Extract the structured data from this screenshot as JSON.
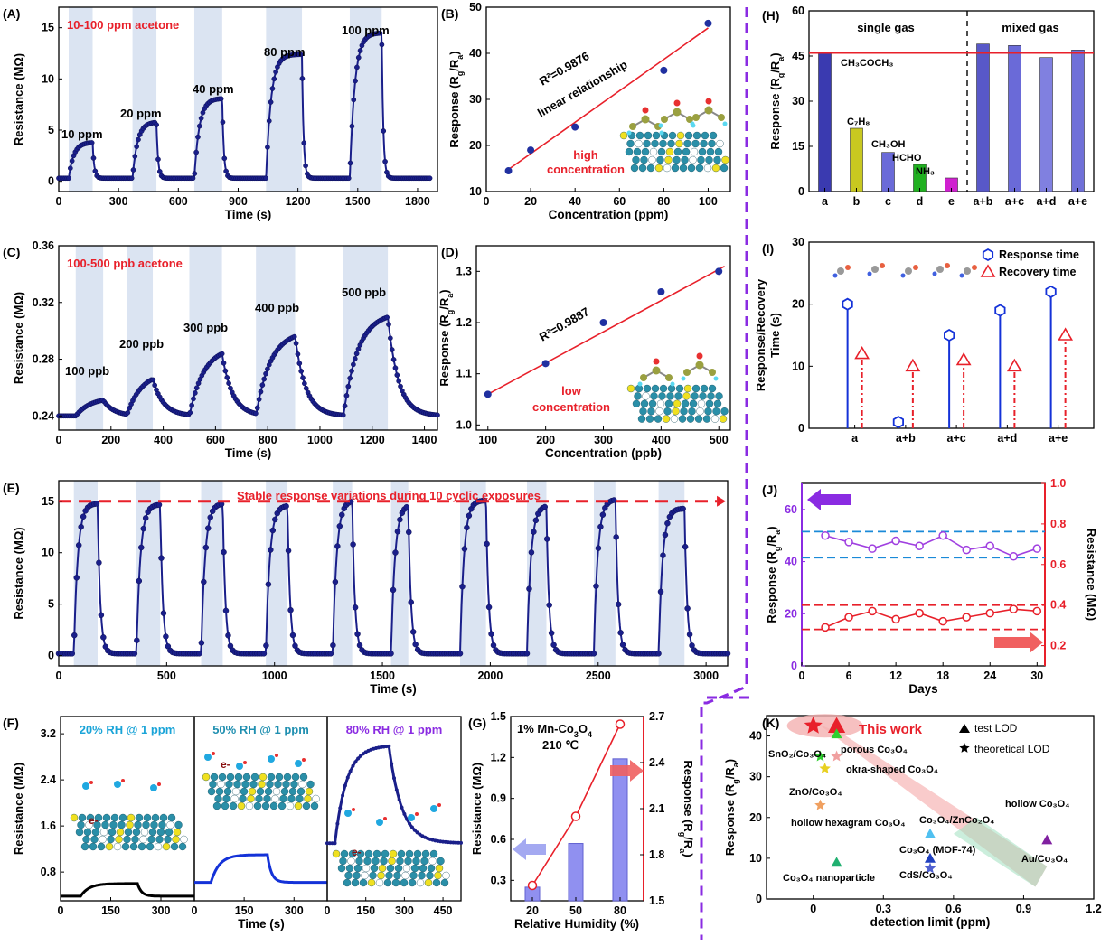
{
  "colors": {
    "navy": "#1a1f8a",
    "red": "#e8202a",
    "blue": "#1432d8",
    "purple": "#8a2be2",
    "shade": "#dbe4f2",
    "cyan": "#1aa4d8",
    "teal": "#1f8fb0"
  },
  "panels": {
    "A": {
      "label": "(A)",
      "title": "10-100 ppm acetone",
      "xlabel": "Time (s)",
      "ylabel": "Resistance (MΩ)",
      "xticks": [
        "0",
        "300",
        "600",
        "900",
        "1200",
        "1500",
        "1800"
      ],
      "yticks": [
        "0",
        "5",
        "10",
        "15"
      ],
      "annotations": [
        "10 ppm",
        "20 ppm",
        "40 ppm",
        "80 ppm",
        "100 ppm"
      ]
    },
    "B": {
      "label": "(B)",
      "xlabel": "Concentration (ppm)",
      "ylabel": "Response (R",
      "ylabel_sub1": "g",
      "ylabel_mid": "/R",
      "ylabel_sub2": "a",
      "ylabel_end": ")",
      "xticks": [
        "0",
        "20",
        "40",
        "60",
        "80",
        "100"
      ],
      "yticks": [
        "10",
        "20",
        "30",
        "40",
        "50"
      ],
      "r2": "R²=0.9876",
      "note": "linear relationship",
      "conc1": "high",
      "conc2": "concentration"
    },
    "C": {
      "label": "(C)",
      "title": "100-500 ppb acetone",
      "xlabel": "Time (s)",
      "ylabel": "Resistance (MΩ)",
      "xticks": [
        "0",
        "200",
        "400",
        "600",
        "800",
        "1000",
        "1200",
        "1400"
      ],
      "yticks": [
        "0.24",
        "0.28",
        "0.32",
        "0.36"
      ],
      "annotations": [
        "100 ppb",
        "200 ppb",
        "300 ppb",
        "400 ppb",
        "500 ppb"
      ]
    },
    "D": {
      "label": "(D)",
      "xlabel": "Concentration (ppb)",
      "ylabel": "Response (R",
      "ylabel_sub1": "g",
      "ylabel_mid": "/R",
      "ylabel_sub2": "a",
      "ylabel_end": ")",
      "xticks": [
        "100",
        "200",
        "300",
        "400",
        "500"
      ],
      "yticks": [
        "1.0",
        "1.1",
        "1.2",
        "1.3"
      ],
      "r2": "R²=0.9887",
      "conc1": "low",
      "conc2": "concentration"
    },
    "E": {
      "label": "(E)",
      "title": "Stable response variations during 10 cyclic exposures",
      "xlabel": "Time (s)",
      "ylabel": "Resistance (MΩ)",
      "xticks": [
        "0",
        "500",
        "1000",
        "1500",
        "2000",
        "2500",
        "3000"
      ],
      "yticks": [
        "0",
        "5",
        "10",
        "15"
      ]
    },
    "F": {
      "label": "(F)",
      "xlabel": "Time (s)",
      "ylabel": "Resistance (MΩ)",
      "yticks": [
        "0.8",
        "1.6",
        "2.4",
        "3.2"
      ],
      "sub": [
        {
          "title": "20% RH @ 1 ppm",
          "xticks": [
            "0",
            "150",
            "300"
          ]
        },
        {
          "title": "50% RH @ 1 ppm",
          "xticks": [
            "0",
            "150",
            "300"
          ]
        },
        {
          "title": "80% RH @ 1 ppm",
          "xticks": [
            "0",
            "150",
            "300",
            "450"
          ]
        }
      ],
      "e": "e-"
    },
    "G": {
      "label": "(G)",
      "title1": "1% Mn-Co",
      "title_sub1": "3",
      "title_mid": "O",
      "title_sub2": "4",
      "title2": "210 ℃",
      "xlabel": "Relative Humidity (%)",
      "ylabel": "Resistance (MΩ)",
      "ylabel2": "Response (R",
      "ylabel2_sub1": "g",
      "ylabel2_mid": "/R",
      "ylabel2_sub2": "a",
      "ylabel2_end": ")",
      "xticks": [
        "20",
        "50",
        "80"
      ],
      "yticks": [
        "0.3",
        "0.6",
        "0.9",
        "1.2",
        "1.5"
      ],
      "y2ticks": [
        "1.5",
        "1.8",
        "2.1",
        "2.4",
        "2.7"
      ]
    },
    "H": {
      "label": "(H)",
      "ylabel": "Response (R",
      "ylabel_sub1": "g",
      "ylabel_mid": "/R",
      "ylabel_sub2": "a",
      "ylabel_end": ")",
      "xticks": [
        "a",
        "b",
        "c",
        "d",
        "e",
        "a+b",
        "a+c",
        "a+d",
        "a+e"
      ],
      "yticks": [
        "0",
        "15",
        "30",
        "45",
        "60"
      ],
      "group1": "single gas",
      "group2": "mixed gas",
      "baronames": [
        "CH₃COCH₃",
        "C₇H₈",
        "CH₃OH",
        "HCHO",
        "NH₃"
      ]
    },
    "I": {
      "label": "(I)",
      "ylabel": "Response/Recovery",
      "ylabel2": "Time (s)",
      "xticks": [
        "a",
        "a+b",
        "a+c",
        "a+d",
        "a+e"
      ],
      "yticks": [
        "0",
        "10",
        "20",
        "30"
      ],
      "legend": [
        "Response time",
        "Recovery time"
      ]
    },
    "J": {
      "label": "(J)",
      "xlabel": "Days",
      "ylabel": "Response (R",
      "ylabel_sub1": "g",
      "ylabel_mid": "/R",
      "ylabel_sub2": "a",
      "ylabel_end": ")",
      "ylabel2": "Resistance (MΩ)",
      "xticks": [
        "0",
        "6",
        "12",
        "18",
        "24",
        "30"
      ],
      "yticks": [
        "0",
        "20",
        "40",
        "60"
      ],
      "y2ticks": [
        "0.2",
        "0.4",
        "0.6",
        "0.8",
        "1.0"
      ]
    },
    "K": {
      "label": "(K)",
      "xlabel": "detection limit  (ppm)",
      "ylabel": "Response (R",
      "ylabel_sub1": "g",
      "ylabel_mid": "/R",
      "ylabel_sub2": "a",
      "ylabel_end": ")",
      "xticks": [
        "0",
        "0.3",
        "0.6",
        "0.9",
        "1.2"
      ],
      "yticks": [
        "0",
        "10",
        "20",
        "30",
        "40"
      ],
      "thiswork": "This work",
      "legend": [
        "test LOD",
        "theoretical LOD"
      ],
      "names": [
        "SnO₂/Co₃O₄",
        "porous Co₃O₄",
        "okra-shaped Co₃O₄",
        "ZnO/Co₃O₄",
        "hollow hexagram Co₃O₄",
        "Co₃O₄/ZnCo₂O₄",
        "hollow Co₃O₄",
        "Co₃O₄ (MOF-74)",
        "Au/Co₃O₄",
        "CdS/Co₃O₄",
        "Co₃O₄ nanoparticle"
      ]
    }
  },
  "chart_data": [
    {
      "panel": "A",
      "type": "line",
      "xlim": [
        0,
        1900
      ],
      "ylim": [
        -1,
        17
      ],
      "exposures": [
        [
          50,
          170,
          3.8
        ],
        [
          370,
          490,
          5.8
        ],
        [
          680,
          820,
          8.1
        ],
        [
          1040,
          1220,
          12.4
        ],
        [
          1460,
          1620,
          14.5
        ]
      ],
      "baseline": 0.3
    },
    {
      "panel": "B",
      "type": "scatter",
      "xlim": [
        0,
        110
      ],
      "ylim": [
        10,
        50
      ],
      "x": [
        10,
        20,
        40,
        80,
        100
      ],
      "y": [
        14.5,
        19,
        24,
        36.3,
        46.5
      ],
      "fit": [
        [
          10,
          14.8
        ],
        [
          100,
          45.5
        ]
      ]
    },
    {
      "panel": "C",
      "type": "line",
      "xlim": [
        0,
        1450
      ],
      "ylim": [
        0.23,
        0.36
      ],
      "exposures": [
        [
          65,
          170,
          0.253
        ],
        [
          260,
          360,
          0.271
        ],
        [
          500,
          625,
          0.289
        ],
        [
          755,
          905,
          0.3
        ],
        [
          1090,
          1260,
          0.313
        ]
      ],
      "baseline": 0.24
    },
    {
      "panel": "D",
      "type": "scatter",
      "xlim": [
        80,
        520
      ],
      "ylim": [
        0.99,
        1.35
      ],
      "x": [
        100,
        200,
        300,
        400,
        500
      ],
      "y": [
        1.06,
        1.12,
        1.2,
        1.26,
        1.3
      ],
      "fit": [
        [
          100,
          1.06
        ],
        [
          510,
          1.31
        ]
      ]
    },
    {
      "panel": "E",
      "type": "line",
      "xlim": [
        0,
        3100
      ],
      "ylim": [
        -1,
        17
      ],
      "exposures": [
        [
          70,
          180,
          14.8
        ],
        [
          360,
          470,
          14.7
        ],
        [
          660,
          760,
          14.8
        ],
        [
          960,
          1060,
          14.6
        ],
        [
          1270,
          1360,
          15.1
        ],
        [
          1540,
          1620,
          14.7
        ],
        [
          1860,
          1980,
          15.1
        ],
        [
          2170,
          2260,
          14.6
        ],
        [
          2480,
          2580,
          15.2
        ],
        [
          2780,
          2900,
          14.3
        ]
      ],
      "baseline": 0.2,
      "stableline": 15
    },
    {
      "panel": "F",
      "type": "line",
      "ylim": [
        0.3,
        3.5
      ],
      "traces": [
        {
          "xlim": [
            0,
            400
          ],
          "exposure": [
            60,
            230
          ],
          "base": 0.38,
          "top": 0.6,
          "color": "#000000"
        },
        {
          "xlim": [
            0,
            400
          ],
          "exposure": [
            50,
            220
          ],
          "base": 0.62,
          "top": 1.1,
          "color": "#1432d8"
        },
        {
          "xlim": [
            0,
            520
          ],
          "exposure": [
            30,
            240
          ],
          "base": 1.3,
          "top": 3.0,
          "color": "#1a1f8a"
        }
      ]
    },
    {
      "panel": "G",
      "type": "bar",
      "categories": [
        "20",
        "50",
        "80"
      ],
      "values": [
        0.25,
        0.57,
        1.19
      ],
      "ylim": [
        0.15,
        1.5
      ],
      "response": [
        1.6,
        2.05,
        2.65
      ],
      "y2lim": [
        1.5,
        2.7
      ]
    },
    {
      "panel": "H",
      "type": "bar",
      "categories": [
        "a",
        "b",
        "c",
        "d",
        "e",
        "a+b",
        "a+c",
        "a+d",
        "a+e"
      ],
      "values": [
        46,
        21,
        13,
        9,
        4.5,
        49,
        48.5,
        44.5,
        47
      ],
      "ylim": [
        0,
        60
      ],
      "refline": 46,
      "barcolors": [
        "#3a3ab0",
        "#c8c820",
        "#6a6ad8",
        "#20b020",
        "#d020d0",
        "#5858c8",
        "#6a6ad8",
        "#8080e0",
        "#7070d8"
      ]
    },
    {
      "panel": "I",
      "type": "scatter",
      "categories": [
        "a",
        "a+b",
        "a+c",
        "a+d",
        "a+e"
      ],
      "response": [
        20,
        1,
        15,
        19,
        22
      ],
      "recovery": [
        12,
        10,
        11,
        10,
        15
      ],
      "ylim": [
        0,
        30
      ]
    },
    {
      "panel": "J",
      "type": "line",
      "xlim": [
        0,
        31
      ],
      "ylim": [
        0,
        70
      ],
      "y2lim": [
        0.1,
        1.0
      ],
      "days": [
        3,
        6,
        9,
        12,
        15,
        18,
        21,
        24,
        27,
        30
      ],
      "response": [
        50,
        47.5,
        45,
        48,
        46,
        50,
        44.5,
        46,
        42,
        45
      ],
      "resistance": [
        0.29,
        0.34,
        0.37,
        0.33,
        0.36,
        0.32,
        0.34,
        0.36,
        0.38,
        0.37
      ],
      "hlines_resp": [
        51.5,
        41.5
      ],
      "hlines_res": [
        0.4,
        0.28
      ]
    },
    {
      "panel": "K",
      "type": "scatter",
      "xlim": [
        -0.2,
        1.2
      ],
      "ylim": [
        0,
        45
      ],
      "points": [
        {
          "x": 0.1,
          "y": 42.5,
          "m": "triangle",
          "c": "#e8202a",
          "s": 1.6
        },
        {
          "x": 0,
          "y": 42.5,
          "m": "star",
          "c": "#e8202a",
          "s": 1.6
        },
        {
          "x": 0.1,
          "y": 40.5,
          "m": "triangle",
          "c": "#2fd02f",
          "s": 1
        },
        {
          "x": 0.03,
          "y": 35,
          "m": "star",
          "c": "#2fd02f",
          "s": 1
        },
        {
          "x": 0.1,
          "y": 35,
          "m": "star",
          "c": "#f0a0a0",
          "s": 1
        },
        {
          "x": 0.05,
          "y": 32,
          "m": "star",
          "c": "#e8d020",
          "s": 1
        },
        {
          "x": 0.03,
          "y": 23,
          "m": "star",
          "c": "#f0a060",
          "s": 1
        },
        {
          "x": 0.5,
          "y": 16,
          "m": "triangle",
          "c": "#50c0f0",
          "s": 1
        },
        {
          "x": 0.5,
          "y": 10,
          "m": "triangle",
          "c": "#2040c0",
          "s": 1
        },
        {
          "x": 0.5,
          "y": 7.5,
          "m": "star",
          "c": "#5060d0",
          "s": 1
        },
        {
          "x": 1,
          "y": 14.5,
          "m": "triangle",
          "c": "#8020a0",
          "s": 1
        },
        {
          "x": 0.1,
          "y": 9,
          "m": "triangle",
          "c": "#20b070",
          "s": 1
        }
      ]
    }
  ]
}
